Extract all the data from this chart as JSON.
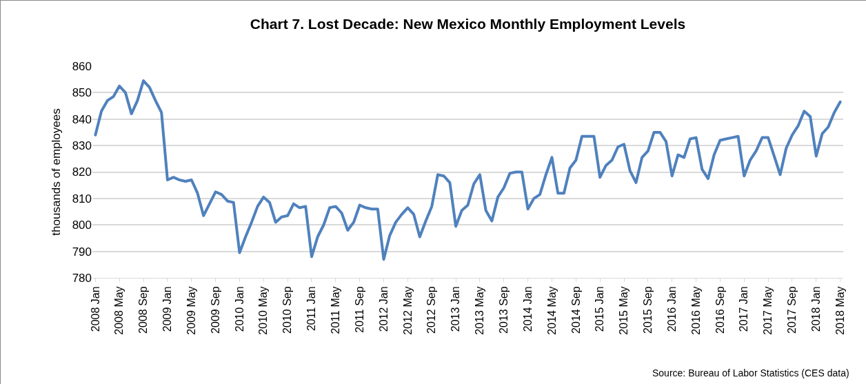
{
  "chart_data": {
    "type": "line",
    "title": "Chart 7. Lost Decade: New Mexico Monthly Employment Levels",
    "ylabel": "thousands of employees",
    "categories": [
      "2008 Jan",
      null,
      null,
      null,
      "2008 May",
      null,
      null,
      null,
      "2008 Sep",
      null,
      null,
      null,
      "2009 Jan",
      null,
      null,
      null,
      "2009 May",
      null,
      null,
      null,
      "2009 Sep",
      null,
      null,
      null,
      "2010 Jan",
      null,
      null,
      null,
      "2010 May",
      null,
      null,
      null,
      "2010 Sep",
      null,
      null,
      null,
      "2011 Jan",
      null,
      null,
      null,
      "2011 May",
      null,
      null,
      null,
      "2011 Sep",
      null,
      null,
      null,
      "2012 Jan",
      null,
      null,
      null,
      "2012 May",
      null,
      null,
      null,
      "2012 Sep",
      null,
      null,
      null,
      "2013 Jan",
      null,
      null,
      null,
      "2013 May",
      null,
      null,
      null,
      "2013 Sep",
      null,
      null,
      null,
      "2014 Jan",
      null,
      null,
      null,
      "2014 May",
      null,
      null,
      null,
      "2014 Sep",
      null,
      null,
      null,
      "2015 Jan",
      null,
      null,
      null,
      "2015 May",
      null,
      null,
      null,
      "2015 Sep",
      null,
      null,
      null,
      "2016 Jan",
      null,
      null,
      null,
      "2016 May",
      null,
      null,
      null,
      "2016 Sep",
      null,
      null,
      null,
      "2017 Jan",
      null,
      null,
      null,
      "2017 May",
      null,
      null,
      null,
      "2017 Sep",
      null,
      null,
      null,
      "2018 Jan",
      null,
      null,
      null,
      "2018 May"
    ],
    "series": [
      {
        "color": "#4f81bd",
        "values": [
          834,
          843,
          847,
          848.5,
          852.5,
          850,
          842,
          847,
          854.5,
          852,
          847,
          842.5,
          817,
          818,
          817,
          816.5,
          817,
          812,
          803.5,
          808,
          812.5,
          811.5,
          809,
          808.5,
          789.5,
          795.5,
          801,
          807,
          810.5,
          808.5,
          801,
          803,
          803.5,
          808,
          806.5,
          807,
          788,
          795.5,
          800,
          806.5,
          807,
          804.5,
          798,
          801,
          807.5,
          806.5,
          806,
          806,
          787,
          796,
          801,
          804,
          806.5,
          804,
          795.5,
          801.5,
          807,
          819,
          818.5,
          816,
          799.5,
          805.5,
          807.5,
          815.5,
          819,
          805.5,
          801.5,
          810.5,
          814,
          819.5,
          820,
          820,
          806,
          810,
          811.5,
          819,
          825.5,
          812,
          812,
          821.5,
          824.5,
          833.5,
          833.5,
          833.5,
          818,
          822.5,
          824.5,
          829.5,
          830.5,
          820.5,
          816,
          825.5,
          828,
          835,
          835,
          831.5,
          818.5,
          826.5,
          825.5,
          832.5,
          833,
          821,
          817.5,
          826.5,
          832,
          832.5,
          833,
          833.5,
          818.5,
          824.5,
          828,
          833,
          833,
          826,
          819,
          829,
          834,
          837.5,
          843,
          841,
          826,
          834.5,
          837,
          842.5,
          846.5
        ]
      }
    ],
    "ylim": [
      780,
      860
    ],
    "yticks": [
      780,
      790,
      800,
      810,
      820,
      830,
      840,
      850,
      860
    ],
    "grid": "y",
    "marker": "none",
    "line_style": "solid",
    "annotations": [
      "Source: Bureau of Labor Statistics (CES data)"
    ]
  }
}
